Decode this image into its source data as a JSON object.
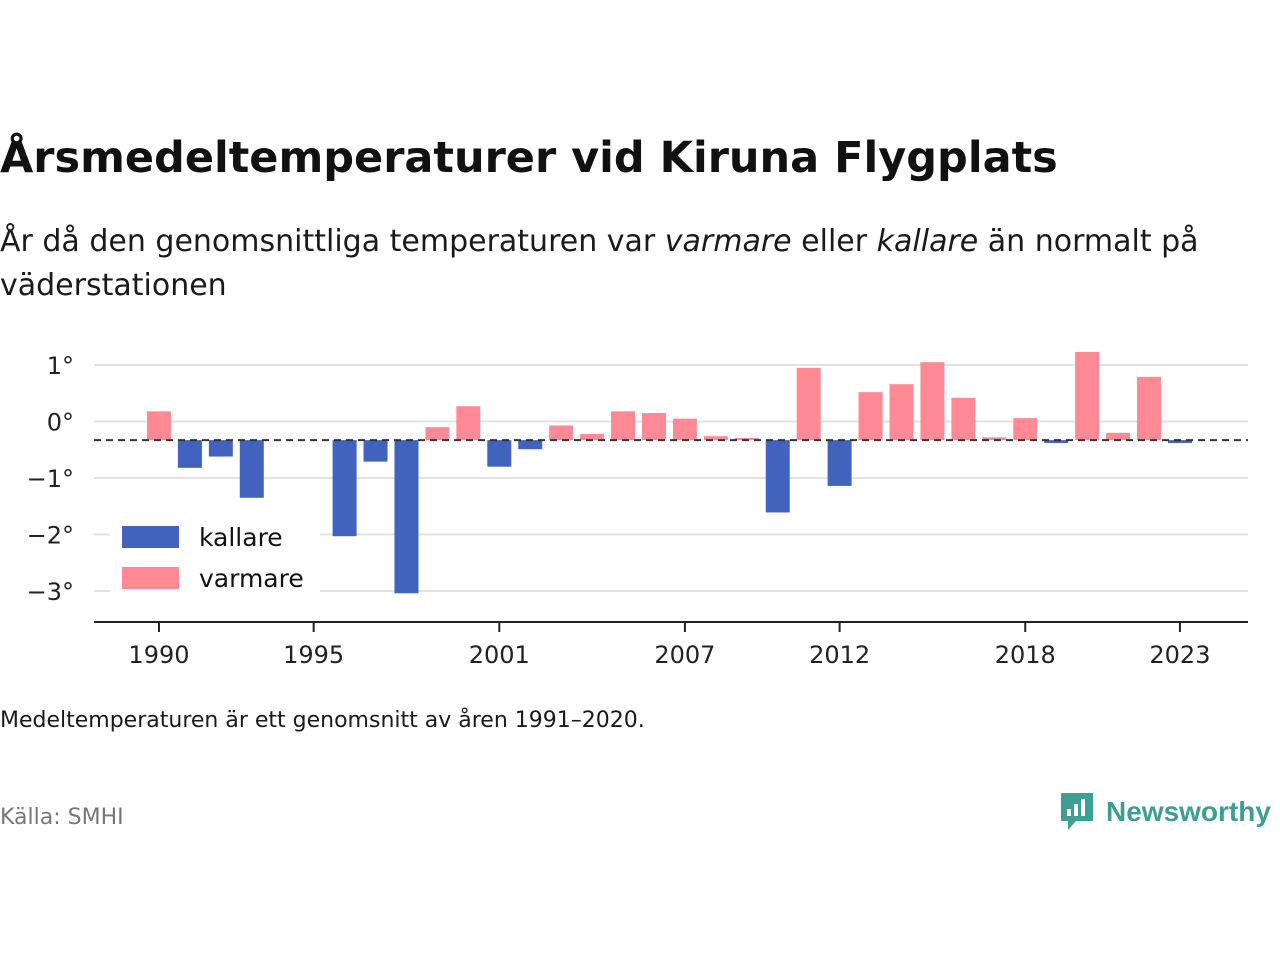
{
  "header": {
    "title": "Årsmedeltemperaturer vid Kiruna Flygplats",
    "subtitle_pre": "År då den genomsnittliga temperaturen var ",
    "subtitle_warm": "varmare",
    "subtitle_mid": " eller ",
    "subtitle_cold": "kallare",
    "subtitle_post": " än normalt på väderstationen"
  },
  "footer": {
    "note": "Medeltemperaturen är ett genomsnitt av åren 1991–2020.",
    "source": "Källa: SMHI",
    "brand": "Newsworthy"
  },
  "colors": {
    "warm": "#ff8a95",
    "cold": "#4163be",
    "grid": "#e2e2e2",
    "axis": "#222222",
    "brand": "#3d9e93"
  },
  "chart_data": {
    "type": "bar",
    "baseline": -0.33,
    "ylim": [
      -3.5,
      1.35
    ],
    "yticks": [
      1,
      0,
      -1,
      -2,
      -3
    ],
    "ytick_labels": [
      "1°",
      "0°",
      "−1°",
      "−2°",
      "−3°"
    ],
    "xticks": [
      1990,
      1995,
      2001,
      2007,
      2012,
      2018,
      2023
    ],
    "xtick_labels": [
      "1990",
      "1995",
      "2001",
      "2007",
      "2012",
      "2018",
      "2023"
    ],
    "xlim": [
      1987.9,
      2025.2
    ],
    "legend": {
      "position": "bottom-left",
      "items": [
        {
          "label": "kallare",
          "series": "cold"
        },
        {
          "label": "varmare",
          "series": "warm"
        }
      ]
    },
    "x": [
      1990,
      1991,
      1992,
      1993,
      1996,
      1997,
      1998,
      1999,
      2000,
      2001,
      2002,
      2003,
      2004,
      2005,
      2006,
      2007,
      2008,
      2009,
      2010,
      2011,
      2012,
      2013,
      2014,
      2015,
      2016,
      2017,
      2018,
      2019,
      2020,
      2021,
      2022,
      2023
    ],
    "values": [
      0.18,
      -0.82,
      -0.62,
      -1.35,
      -2.03,
      -0.71,
      -3.04,
      -0.1,
      0.27,
      -0.8,
      -0.49,
      -0.07,
      -0.22,
      0.18,
      0.15,
      0.05,
      -0.26,
      -0.29,
      -1.61,
      0.95,
      -1.14,
      0.52,
      0.66,
      1.05,
      0.42,
      -0.28,
      0.06,
      -0.38,
      1.23,
      -0.2,
      0.79,
      -0.38
    ]
  }
}
